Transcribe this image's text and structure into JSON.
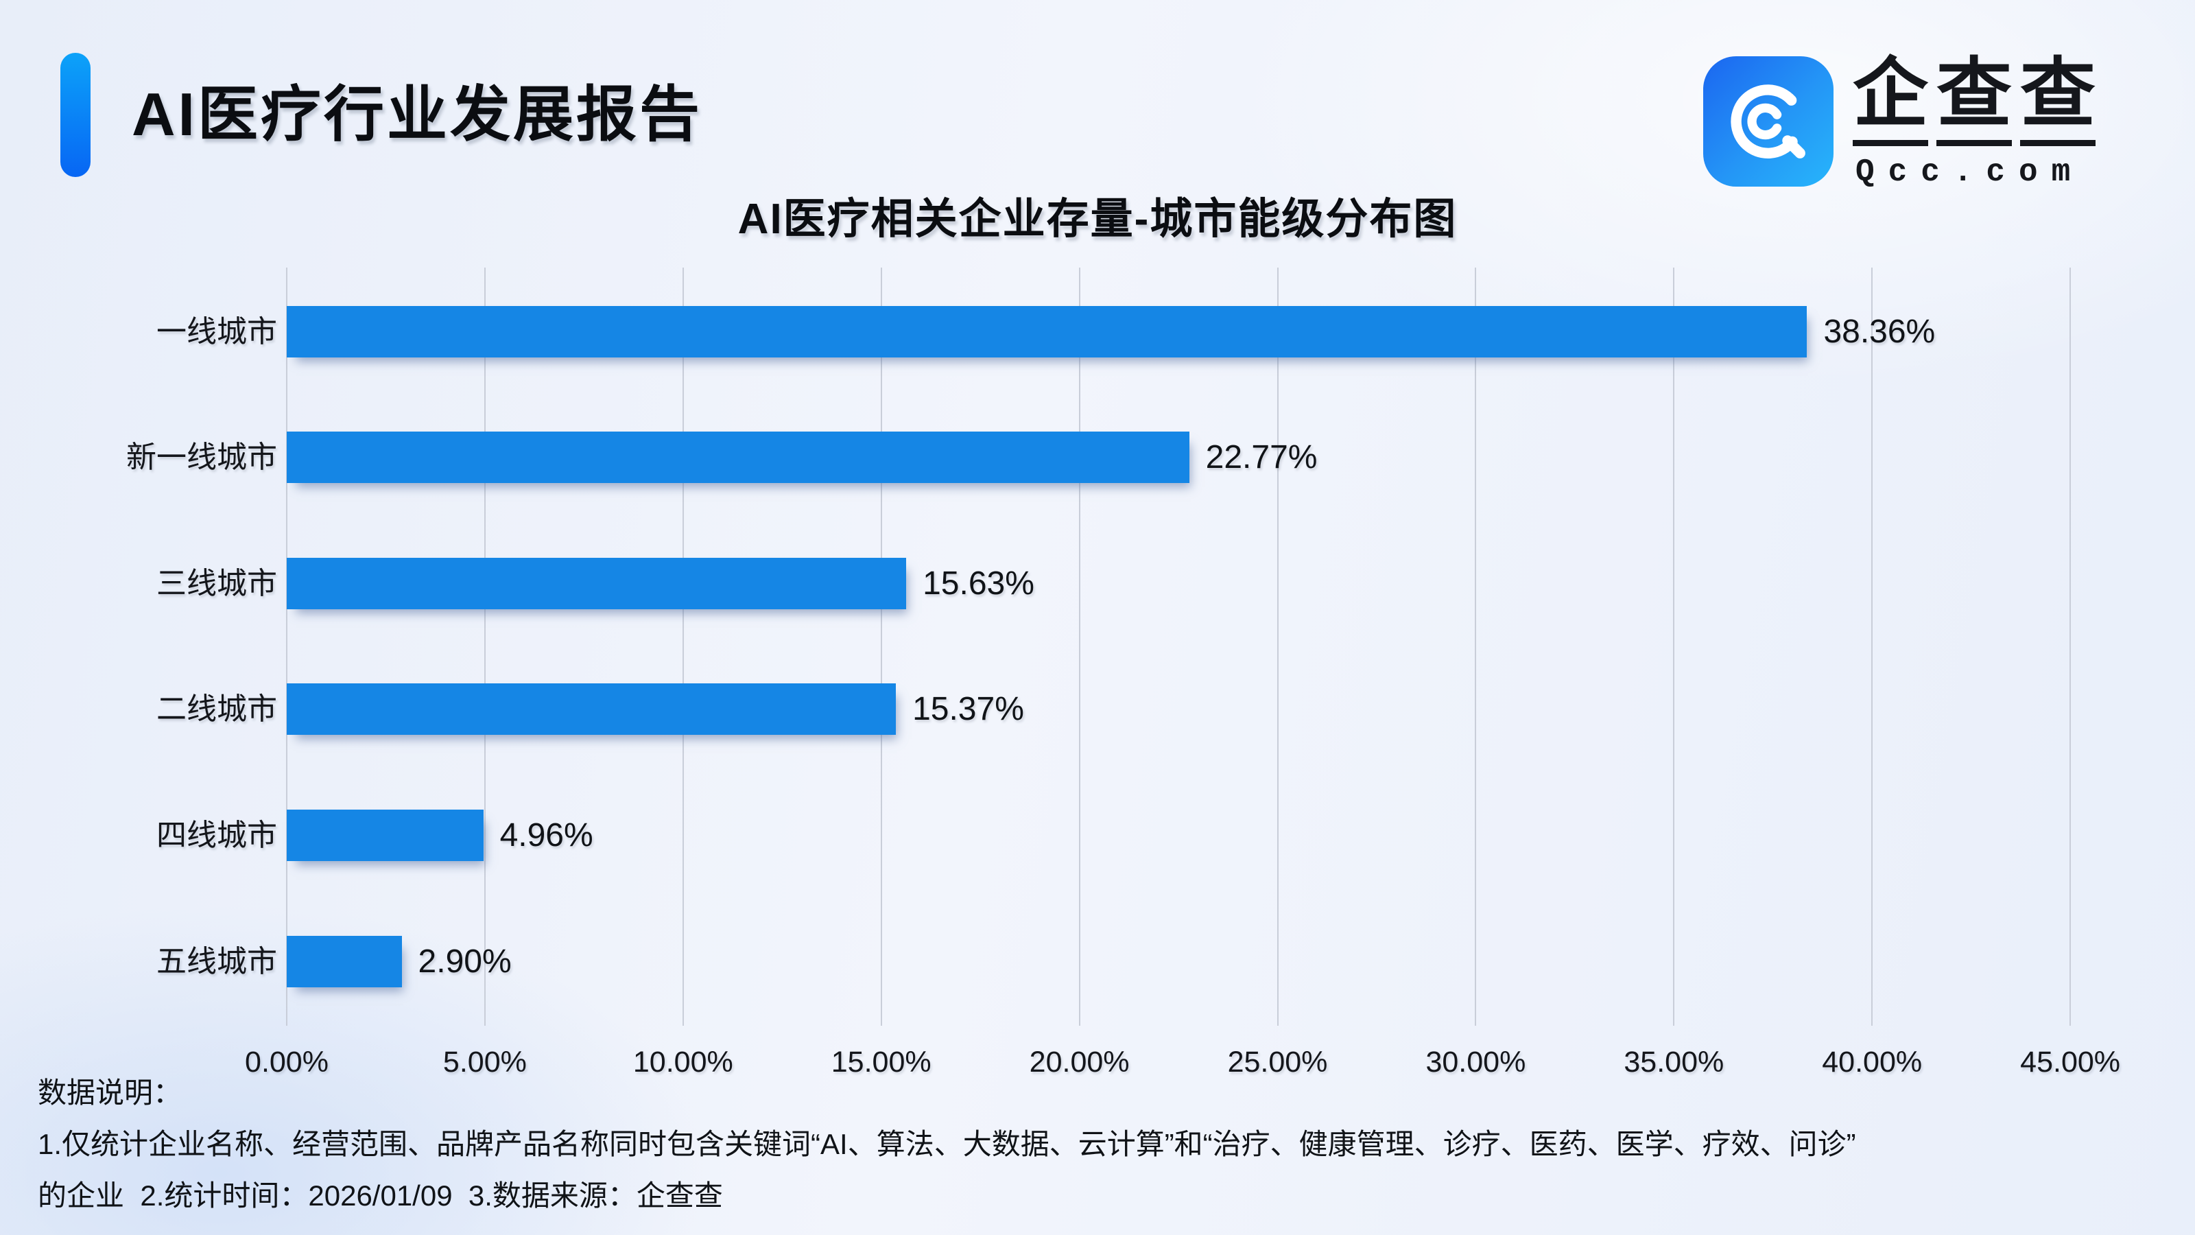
{
  "header": {
    "title": "AI医疗行业发展报告"
  },
  "logo": {
    "chars": "企查查",
    "domain": "Qcc.com"
  },
  "chart_data": {
    "type": "bar",
    "orientation": "horizontal",
    "title": "AI医疗相关企业存量-城市能级分布图",
    "categories": [
      "一线城市",
      "新一线城市",
      "三线城市",
      "二线城市",
      "四线城市",
      "五线城市"
    ],
    "values": [
      38.36,
      22.77,
      15.63,
      15.37,
      4.96,
      2.9
    ],
    "value_labels": [
      "38.36%",
      "22.77%",
      "15.63%",
      "15.37%",
      "4.96%",
      "2.90%"
    ],
    "x_ticks": [
      "0.00%",
      "5.00%",
      "10.00%",
      "15.00%",
      "20.00%",
      "25.00%",
      "30.00%",
      "35.00%",
      "40.00%",
      "45.00%"
    ],
    "xlim": [
      0,
      45
    ],
    "grid": true,
    "legend": "none",
    "bar_color": "#1586e5",
    "grid_color": "#c9ced9"
  },
  "notes": {
    "heading": "数据说明：",
    "line1": "1.仅统计企业名称、经营范围、品牌产品名称同时包含关键词“AI、算法、大数据、云计算”和“治疗、健康管理、诊疗、医药、医学、疗效、问诊”",
    "line2": "的企业  2.统计时间：2026/01/09  3.数据来源：企查查"
  }
}
